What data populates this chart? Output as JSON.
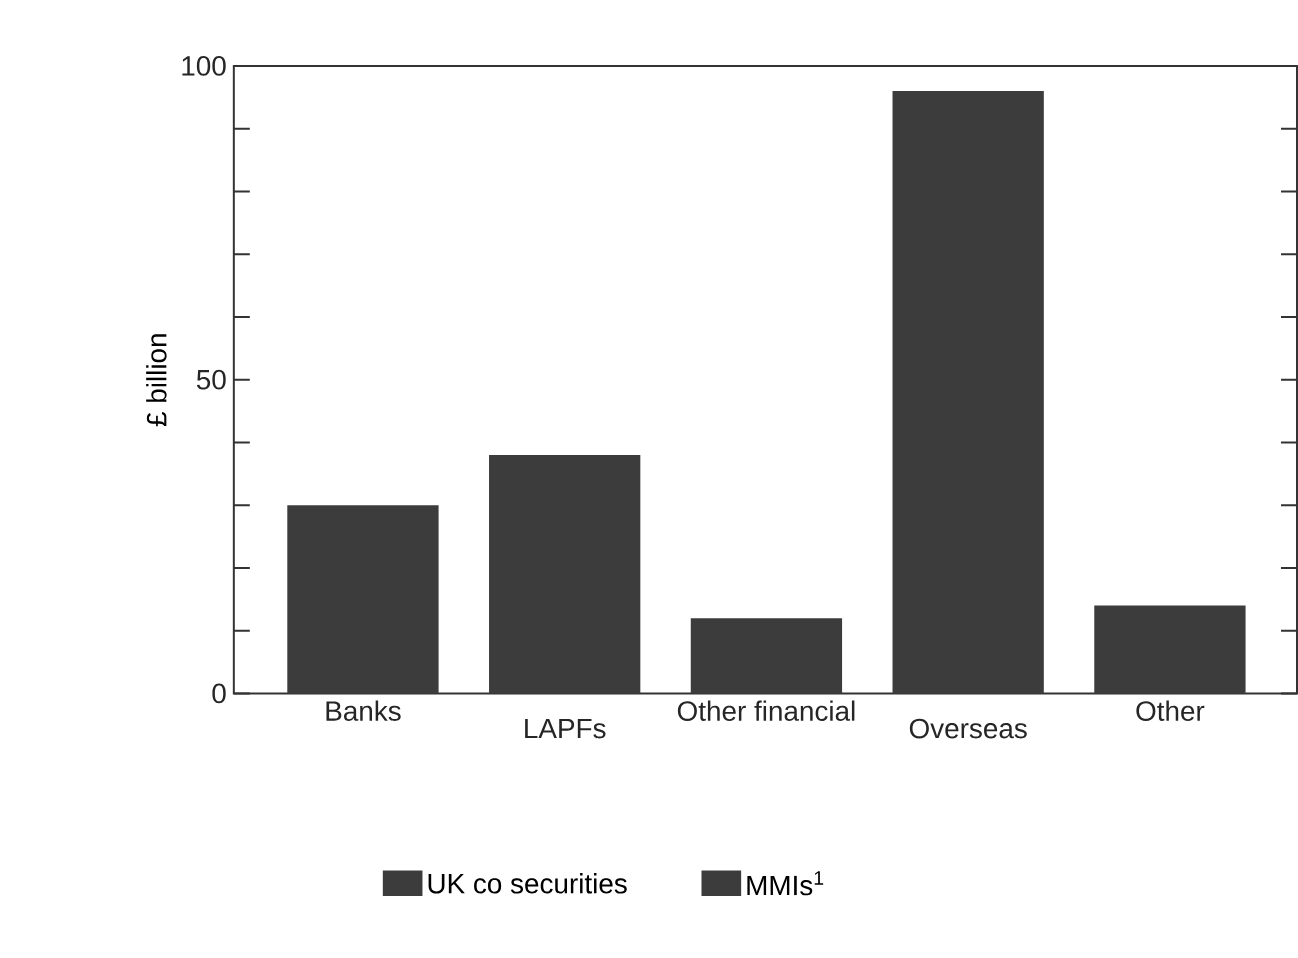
{
  "chart_data": {
    "type": "bar",
    "ylabel": "£ billion",
    "categories": [
      "Banks",
      "LAPFs",
      "Other financial",
      "Overseas",
      "Other"
    ],
    "series": [
      {
        "name": "UK co securities",
        "color": "#3c3c3c",
        "values": [
          30,
          38,
          12,
          96,
          14
        ]
      },
      {
        "name": "MMIs$^{1}$",
        "color": "#3c3c3c",
        "values": [
          null,
          null,
          null,
          null,
          null
        ]
      }
    ],
    "ylim": [
      0,
      100
    ],
    "yticks": [
      0,
      {
        "value": 10,
        "label": null
      },
      {
        "value": 20,
        "label": null
      },
      {
        "value": 30,
        "label": null
      },
      {
        "value": 40,
        "label": null
      },
      50,
      {
        "value": 60,
        "label": null
      },
      {
        "value": 70,
        "label": null
      },
      {
        "value": 80,
        "label": null
      },
      {
        "value": 90,
        "label": null
      },
      100
    ],
    "legend": "bottom"
  }
}
